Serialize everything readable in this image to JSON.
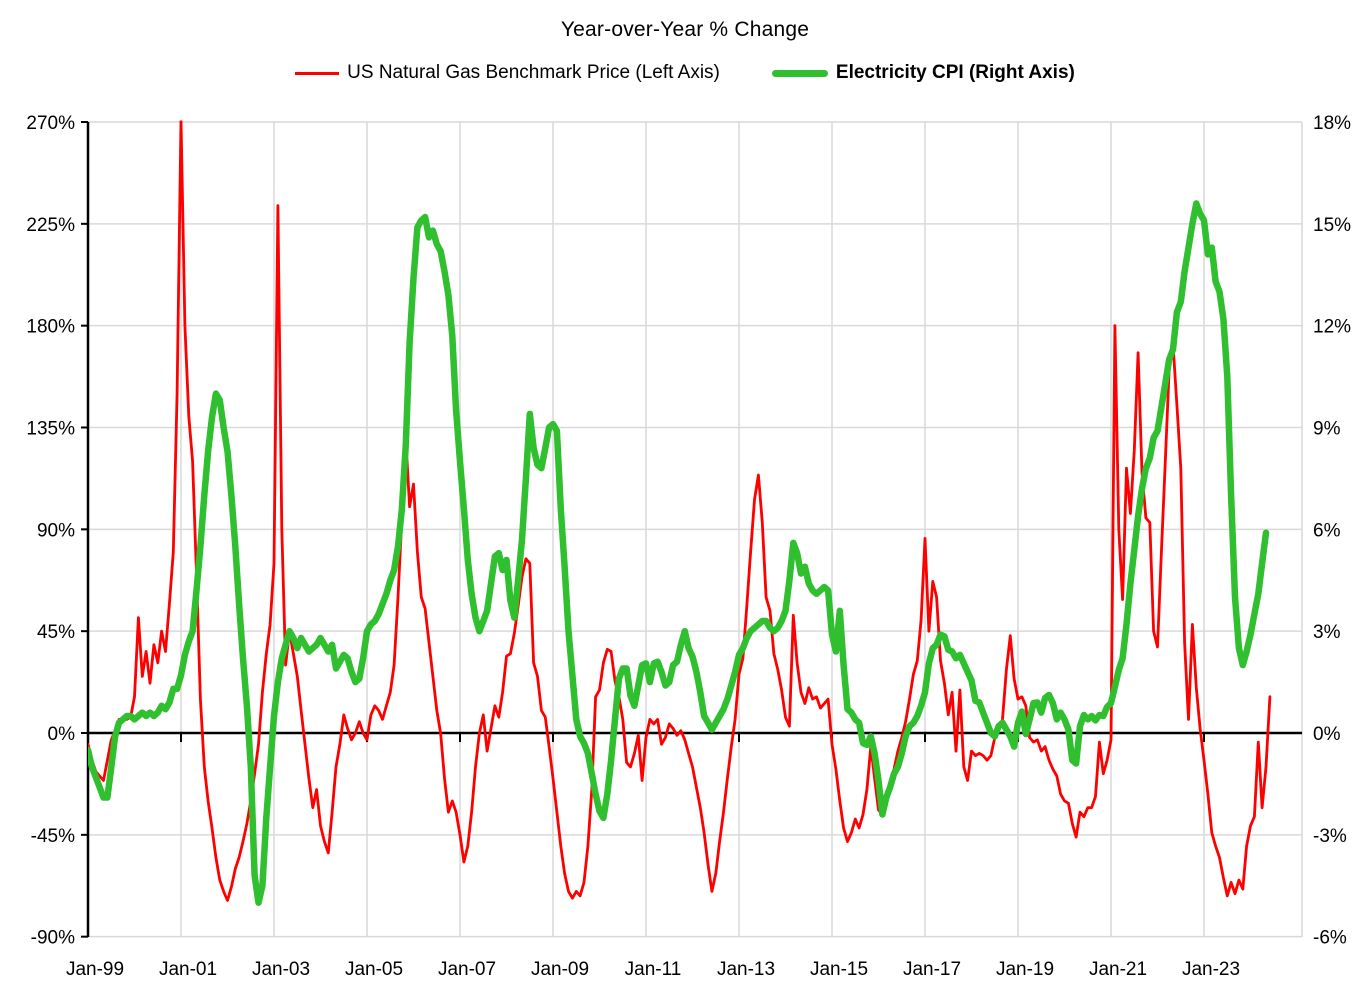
{
  "chart_data": {
    "type": "line",
    "title": "Year-over-Year % Change",
    "x_start": "Jan-1999",
    "frequency": "monthly",
    "x_tick_labels": [
      "Jan-99",
      "Jan-01",
      "Jan-03",
      "Jan-05",
      "Jan-07",
      "Jan-09",
      "Jan-11",
      "Jan-13",
      "Jan-15",
      "Jan-17",
      "Jan-19",
      "Jan-21",
      "Jan-23"
    ],
    "left_axis": {
      "min": -90,
      "max": 270,
      "step": 45,
      "tick_labels": [
        "270%",
        "225%",
        "180%",
        "135%",
        "90%",
        "45%",
        "0%",
        "-45%",
        "-90%"
      ]
    },
    "right_axis": {
      "min": -6,
      "max": 18,
      "step": 3,
      "tick_labels": [
        "18%",
        "15%",
        "12%",
        "9%",
        "6%",
        "3%",
        "0%",
        "-3%",
        "-6%"
      ]
    },
    "grid": true,
    "legend_position": "top",
    "colors": {
      "gas": "#FE0000",
      "cpi": "#2FBF2F",
      "grid": "#D9D9D9",
      "axis": "#000000"
    },
    "series": [
      {
        "name": "US Natural Gas Benchmark Price (Left Axis)",
        "axis": "left",
        "color": "#FE0000",
        "values": [
          -5,
          -12,
          -17,
          -19,
          -21,
          -12,
          -3,
          1,
          6,
          6,
          6,
          7,
          16,
          51,
          25,
          36,
          22,
          39,
          31,
          45,
          36,
          57,
          80,
          150,
          271,
          180,
          140,
          120,
          70,
          15,
          -15,
          -30,
          -42,
          -55,
          -65,
          -70,
          -74,
          -68,
          -60,
          -55,
          -48,
          -40,
          -30,
          -18,
          -5,
          18,
          35,
          48,
          75,
          233,
          90,
          30,
          45,
          35,
          25,
          10,
          -5,
          -20,
          -33,
          -25,
          -41,
          -48,
          -53,
          -35,
          -15,
          -5,
          8,
          2,
          -3,
          0,
          5,
          0,
          -3,
          8,
          12,
          10,
          6,
          12,
          18,
          30,
          60,
          95,
          130,
          100,
          110,
          80,
          60,
          55,
          40,
          25,
          10,
          0,
          -20,
          -35,
          -30,
          -35,
          -45,
          -57,
          -50,
          -35,
          -15,
          0,
          8,
          -8,
          2,
          12,
          7,
          18,
          34,
          35,
          44,
          56,
          69,
          77,
          75,
          31,
          25,
          10,
          7,
          -6,
          -20,
          -35,
          -50,
          -62,
          -70,
          -73,
          -70,
          -72,
          -66,
          -50,
          -25,
          16,
          19,
          31,
          37,
          36,
          23,
          16,
          6,
          -13,
          -15,
          -9,
          -1,
          -21,
          -2,
          6,
          4,
          6,
          -5,
          -2,
          4,
          2,
          -1,
          1,
          -3,
          -9,
          -15,
          -24,
          -33,
          -44,
          -58,
          -70,
          -62,
          -48,
          -35,
          -20,
          -6,
          6,
          26,
          33,
          56,
          80,
          103,
          114,
          93,
          60,
          54,
          35,
          28,
          19,
          7,
          3,
          52,
          31,
          18,
          13,
          20,
          15,
          16,
          11,
          13,
          15,
          -5,
          -16,
          -30,
          -42,
          -48,
          -44,
          -38,
          -42,
          -36,
          -25,
          -6,
          -20,
          -34,
          -36,
          -30,
          -22,
          -16,
          -8,
          -2,
          5,
          15,
          26,
          32,
          50,
          86,
          45,
          67,
          60,
          32,
          22,
          8,
          18,
          -8,
          19,
          -15,
          -21,
          -8,
          -10,
          -9,
          -10,
          -12,
          -10,
          -2,
          1,
          6,
          28,
          43,
          24,
          15,
          16,
          12,
          -2,
          -4,
          -3,
          -8,
          -6,
          -12,
          -16,
          -19,
          -27,
          -30,
          -31,
          -40,
          -46,
          -35,
          -37,
          -33,
          -33,
          -28,
          -4,
          -18,
          -12,
          -3,
          180,
          90,
          59,
          117,
          97,
          125,
          168,
          115,
          95,
          93,
          45,
          38,
          80,
          120,
          160,
          172,
          145,
          117,
          40,
          6,
          48,
          20,
          2,
          -12,
          -27,
          -44,
          -50,
          -55,
          -64,
          -72,
          -66,
          -71,
          -65,
          -69,
          -50,
          -41,
          -37,
          -4,
          -33,
          -15,
          16
        ]
      },
      {
        "name": "Electricity CPI (Right Axis)",
        "axis": "right",
        "color": "#2FBF2F",
        "values": [
          -0.5,
          -1.0,
          -1.3,
          -1.6,
          -1.9,
          -1.9,
          -1.0,
          -0.1,
          0.3,
          0.4,
          0.5,
          0.5,
          0.4,
          0.5,
          0.6,
          0.5,
          0.6,
          0.5,
          0.6,
          0.8,
          0.7,
          0.9,
          1.3,
          1.3,
          1.7,
          2.3,
          2.7,
          3.0,
          4.2,
          5.5,
          7.0,
          8.3,
          9.3,
          10.0,
          9.8,
          9.0,
          8.3,
          7.0,
          5.5,
          3.8,
          2.2,
          0.8,
          -1.0,
          -4.2,
          -5.0,
          -4.5,
          -2.5,
          -1.0,
          0.5,
          1.5,
          2.2,
          2.6,
          3.0,
          2.8,
          2.5,
          2.8,
          2.6,
          2.4,
          2.5,
          2.6,
          2.8,
          2.6,
          2.4,
          2.6,
          1.9,
          2.1,
          2.3,
          2.2,
          1.8,
          1.5,
          1.6,
          2.2,
          3.0,
          3.2,
          3.3,
          3.5,
          3.8,
          4.1,
          4.5,
          4.8,
          5.5,
          6.6,
          8.5,
          11.5,
          13.4,
          14.9,
          15.1,
          15.2,
          14.6,
          14.8,
          14.4,
          14.2,
          13.6,
          12.9,
          11.7,
          9.5,
          8.0,
          6.6,
          5.1,
          4.1,
          3.4,
          3.0,
          3.3,
          3.6,
          4.4,
          5.2,
          5.3,
          4.8,
          5.1,
          3.9,
          3.4,
          4.5,
          5.7,
          7.5,
          9.4,
          8.4,
          7.9,
          7.8,
          8.4,
          9.0,
          9.1,
          8.9,
          6.6,
          4.9,
          3.0,
          1.7,
          0.4,
          -0.1,
          -0.3,
          -0.6,
          -1.2,
          -1.8,
          -2.3,
          -2.5,
          -1.8,
          -0.8,
          0.4,
          1.6,
          1.9,
          1.9,
          1.1,
          0.8,
          1.4,
          2.0,
          2.05,
          1.5,
          2.05,
          2.1,
          1.8,
          1.4,
          1.5,
          2.0,
          2.1,
          2.6,
          3.0,
          2.5,
          2.25,
          1.8,
          1.2,
          0.5,
          0.3,
          0.1,
          0.3,
          0.5,
          0.7,
          1.0,
          1.4,
          1.8,
          2.3,
          2.5,
          2.8,
          3.0,
          3.1,
          3.2,
          3.3,
          3.3,
          3.1,
          3.0,
          3.1,
          3.3,
          3.6,
          4.5,
          5.6,
          5.3,
          4.7,
          4.9,
          4.4,
          4.2,
          4.1,
          4.2,
          4.3,
          4.2,
          2.9,
          2.4,
          3.6,
          2.0,
          0.7,
          0.6,
          0.4,
          0.3,
          -0.3,
          -0.35,
          -0.1,
          -0.6,
          -1.4,
          -2.4,
          -1.9,
          -1.6,
          -1.2,
          -1.0,
          -0.6,
          -0.1,
          0.2,
          0.3,
          0.5,
          0.8,
          1.2,
          2.05,
          2.5,
          2.6,
          2.9,
          2.85,
          2.45,
          2.4,
          2.2,
          2.3,
          2.05,
          1.8,
          1.55,
          0.95,
          0.9,
          0.6,
          0.3,
          0.0,
          -0.1,
          0.2,
          0.3,
          0.1,
          -0.1,
          -0.4,
          0.3,
          0.63,
          -0.03,
          0.4,
          0.88,
          0.9,
          0.6,
          1.03,
          1.12,
          0.88,
          0.4,
          0.6,
          0.4,
          0.1,
          -0.8,
          -0.9,
          0.2,
          0.53,
          0.4,
          0.5,
          0.37,
          0.53,
          0.5,
          0.77,
          0.88,
          1.36,
          1.86,
          2.2,
          3.2,
          4.4,
          5.4,
          6.4,
          7.2,
          7.8,
          8.1,
          8.7,
          8.9,
          9.6,
          10.3,
          11.0,
          11.3,
          12.4,
          12.7,
          13.6,
          14.3,
          15.0,
          15.6,
          15.3,
          15.1,
          14.1,
          14.3,
          13.3,
          13.0,
          12.2,
          10.5,
          7.0,
          4.0,
          2.5,
          2.0,
          2.4,
          2.9,
          3.5,
          4.1,
          5.0,
          5.9,
          null
        ]
      }
    ]
  }
}
